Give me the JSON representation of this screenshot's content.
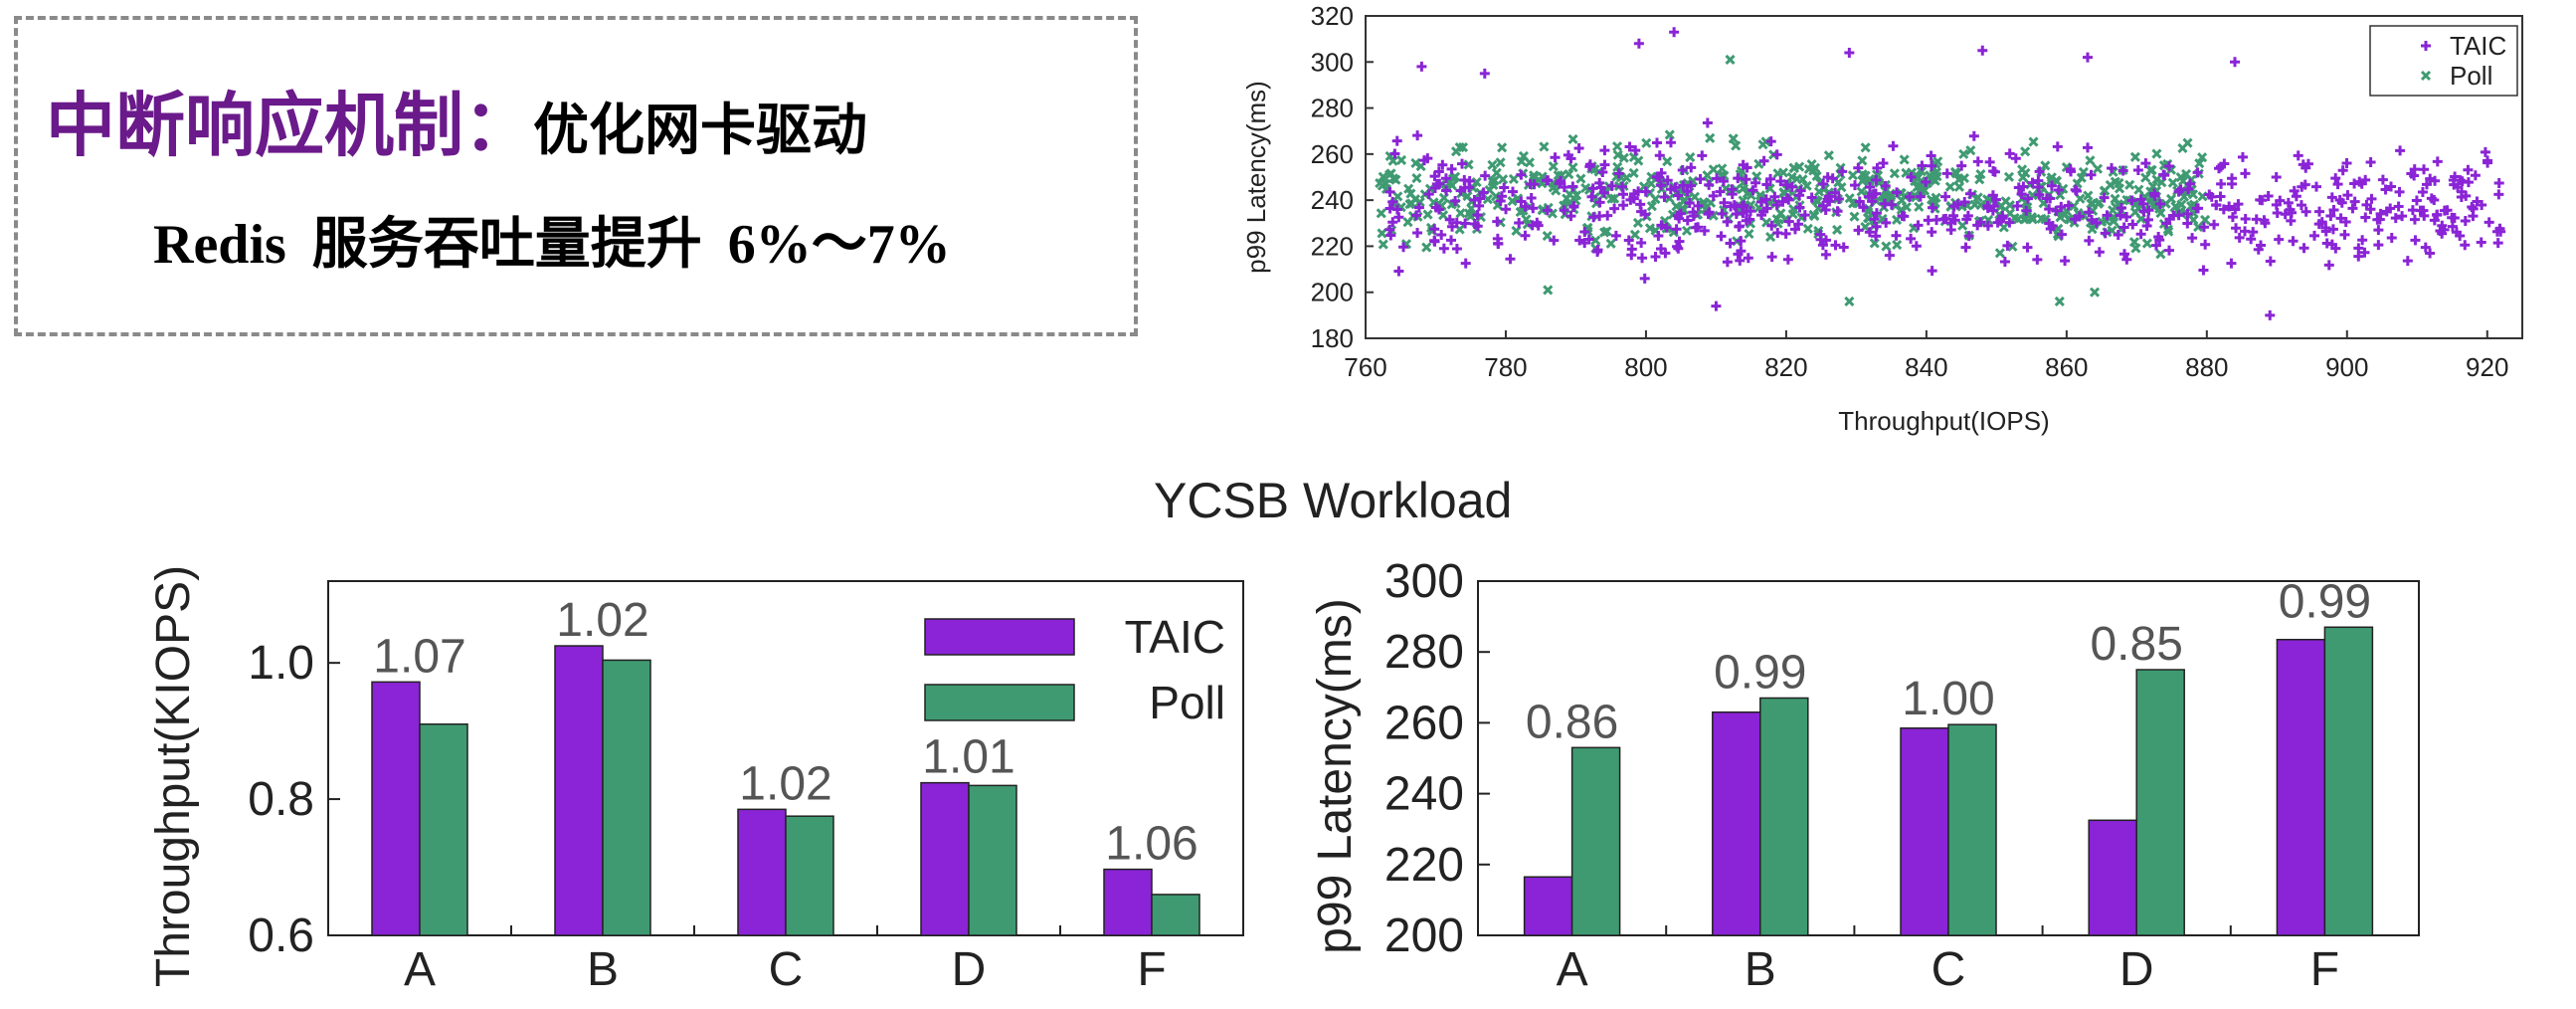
{
  "callout": {
    "title_lead": "中断响应机制：",
    "title_rest": "优化网卡驱动",
    "sub_app": "Redis",
    "sub_text": "服务吞吐量提升",
    "sub_range": "6%～7%"
  },
  "colors": {
    "taic": "#8a24d6",
    "poll": "#3f9a72",
    "callout_title": "#6a1a8a"
  },
  "workload_title": "YCSB Workload",
  "chart_data": [
    {
      "id": "scatter",
      "type": "scatter",
      "title": "",
      "xlabel": "Throughput(IOPS)",
      "ylabel": "p99 Latency(ms)",
      "xlim": [
        760,
        925
      ],
      "ylim": [
        180,
        320
      ],
      "xticks": [
        760,
        780,
        800,
        820,
        840,
        860,
        880,
        900,
        920
      ],
      "yticks": [
        180,
        200,
        220,
        240,
        260,
        280,
        300,
        320
      ],
      "legend": {
        "position": "top-right",
        "entries": [
          "TAIC",
          "Poll"
        ]
      },
      "series": [
        {
          "name": "TAIC",
          "marker": "plus",
          "cloud": {
            "x_range": [
              763,
              922
            ],
            "y_center": 238,
            "y_spread": 22,
            "count": 620
          },
          "outliers": [
            [
              768,
              298
            ],
            [
              799,
              308
            ],
            [
              804,
              313
            ],
            [
              848,
              305
            ],
            [
              863,
              302
            ],
            [
              884,
              300
            ],
            [
              829,
              304
            ],
            [
              777,
              295
            ],
            [
              810,
              194
            ],
            [
              889,
              190
            ]
          ]
        },
        {
          "name": "Poll",
          "marker": "x",
          "cloud": {
            "x_range": [
              762,
              880
            ],
            "y_center": 242,
            "y_spread": 18,
            "count": 580
          },
          "outliers": [
            [
              812,
              301
            ],
            [
              786,
              201
            ],
            [
              829,
              196
            ],
            [
              859,
              196
            ],
            [
              864,
              200
            ]
          ]
        }
      ]
    },
    {
      "id": "throughput",
      "type": "bar",
      "xlabel": "",
      "ylabel": "Throughput(KIOPS)",
      "ylim": [
        0.6,
        1.12
      ],
      "yticks": [
        0.6,
        0.8,
        1.0
      ],
      "ytick_labels": [
        "0.6",
        "0.8",
        "1.0"
      ],
      "legend": {
        "position": "top-right",
        "entries": [
          "TAIC",
          "Poll"
        ]
      },
      "categories": [
        "A",
        "B",
        "C",
        "D",
        "F"
      ],
      "series": [
        {
          "name": "TAIC",
          "values": [
            0.972,
            1.025,
            0.785,
            0.824,
            0.697
          ]
        },
        {
          "name": "Poll",
          "values": [
            0.91,
            1.004,
            0.775,
            0.82,
            0.66
          ]
        }
      ],
      "annotations": [
        "1.07",
        "1.02",
        "1.02",
        "1.01",
        "1.06"
      ]
    },
    {
      "id": "latency",
      "type": "bar",
      "xlabel": "",
      "ylabel": "p99 Latency(ms)",
      "ylim": [
        200,
        300
      ],
      "yticks": [
        200,
        220,
        240,
        260,
        280,
        300
      ],
      "ytick_labels": [
        "200",
        "220",
        "240",
        "260",
        "280",
        "300"
      ],
      "categories": [
        "A",
        "B",
        "C",
        "D",
        "F"
      ],
      "series": [
        {
          "name": "TAIC",
          "values": [
            216.5,
            263,
            258.5,
            232.5,
            283.5
          ]
        },
        {
          "name": "Poll",
          "values": [
            253,
            267,
            259.5,
            275,
            287
          ]
        }
      ],
      "annotations": [
        "0.86",
        "0.99",
        "1.00",
        "0.85",
        "0.99"
      ]
    }
  ]
}
